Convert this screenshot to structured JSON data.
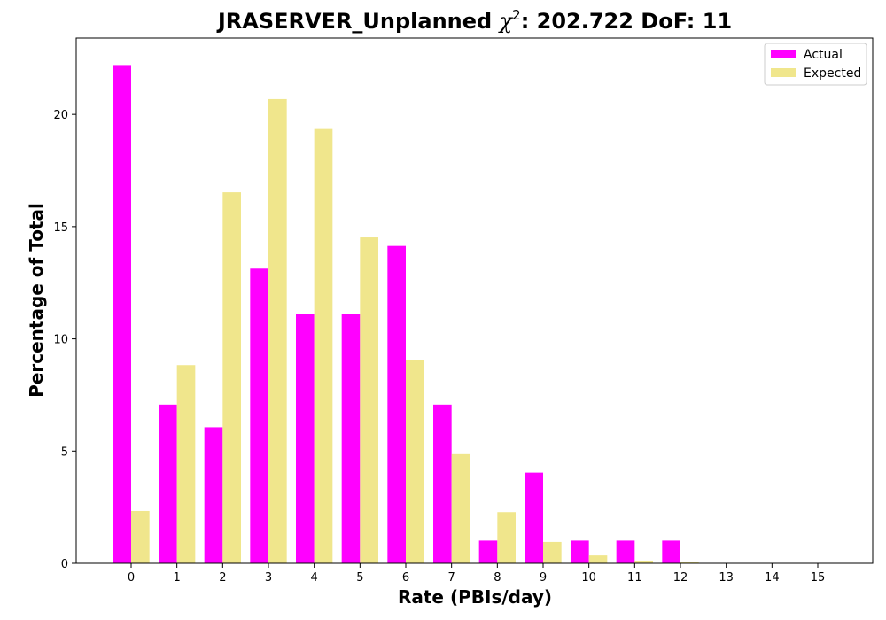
{
  "colors": {
    "actual": "#ff00ff",
    "expected": "#f0e68c"
  },
  "chart_data": {
    "type": "bar",
    "title_prefix": "JRASERVER_Unplanned ",
    "title_chi": "χ",
    "title_sup": "2",
    "title_suffix": ": 202.722 DoF: 11",
    "xlabel": "Rate (PBIs/day)",
    "ylabel": "Percentage of Total",
    "categories": [
      "0",
      "1",
      "2",
      "3",
      "4",
      "5",
      "6",
      "7",
      "8",
      "9",
      "10",
      "11",
      "12",
      "13",
      "14",
      "15"
    ],
    "yticks": [
      "0",
      "5",
      "10",
      "15",
      "20"
    ],
    "ylim": [
      0,
      23.4
    ],
    "xlim": [
      -1.2,
      16.2
    ],
    "legend_position": "top-right",
    "series": [
      {
        "name": "Actual",
        "values": [
          22.2,
          7.07,
          6.06,
          13.13,
          11.11,
          11.11,
          14.14,
          7.07,
          1.01,
          4.04,
          1.01,
          1.01,
          1.01,
          0,
          0,
          0
        ]
      },
      {
        "name": "Expected",
        "values": [
          2.33,
          8.83,
          16.53,
          20.68,
          19.35,
          14.52,
          9.06,
          4.86,
          2.28,
          0.95,
          0.35,
          0.12,
          0.04,
          0.01,
          0,
          0
        ]
      }
    ]
  }
}
